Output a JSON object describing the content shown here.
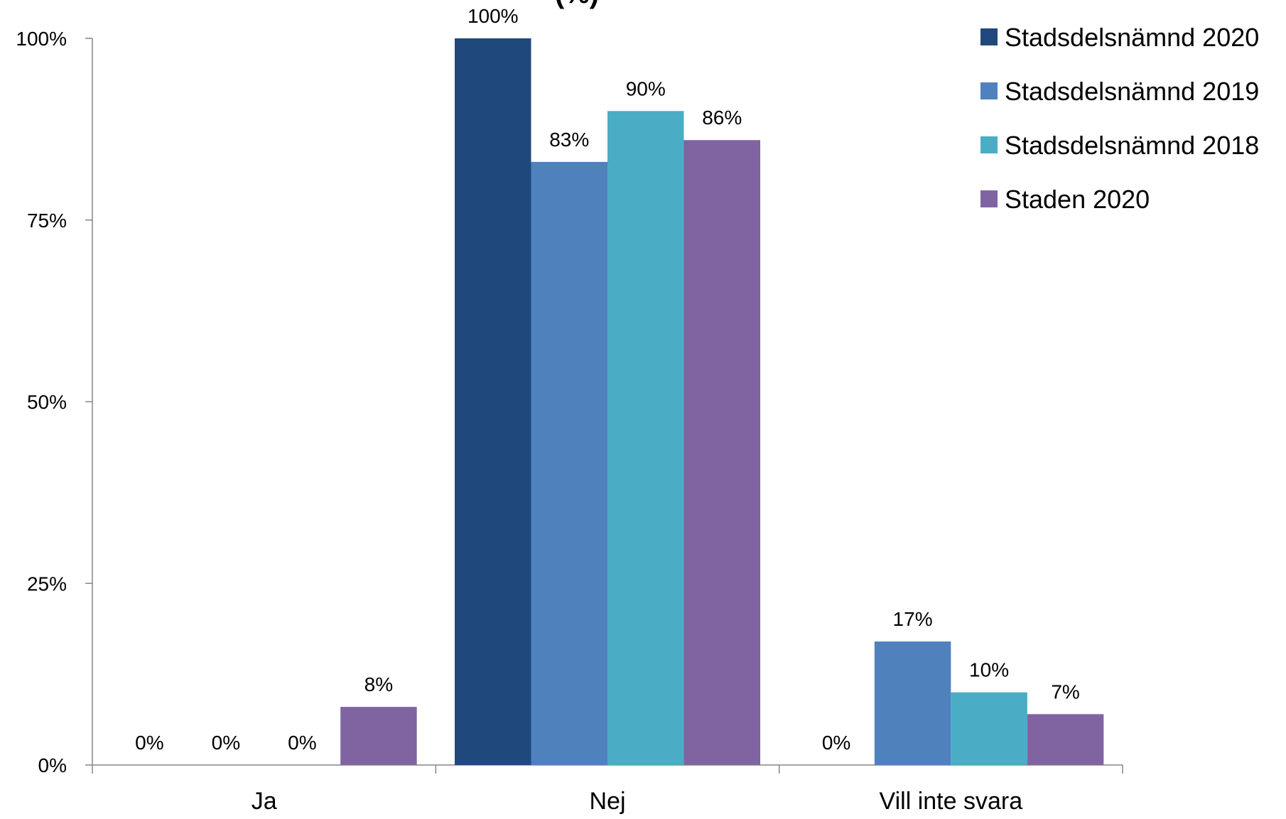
{
  "chart_data": {
    "type": "bar",
    "categories": [
      "Ja",
      "Nej",
      "Vill inte svara"
    ],
    "series": [
      {
        "name": "Stadsdelsnämnd 2020",
        "color": "#1F497D",
        "values": [
          0,
          100,
          0
        ]
      },
      {
        "name": "Stadsdelsnämnd 2019",
        "color": "#4F81BD",
        "values": [
          0,
          83,
          17
        ]
      },
      {
        "name": "Stadsdelsnämnd 2018",
        "color": "#4BACC6",
        "values": [
          0,
          90,
          10
        ]
      },
      {
        "name": "Staden 2020",
        "color": "#8064A2",
        "values": [
          8,
          86,
          7
        ]
      }
    ],
    "data_labels": [
      [
        "0%",
        "100%",
        "0%"
      ],
      [
        "0%",
        "83%",
        "17%"
      ],
      [
        "0%",
        "90%",
        "10%"
      ],
      [
        "8%",
        "86%",
        "7%"
      ]
    ],
    "y_ticks": [
      "0%",
      "25%",
      "50%",
      "75%",
      "100%"
    ],
    "y_tick_values": [
      0,
      25,
      50,
      75,
      100
    ],
    "ylim": [
      0,
      100
    ],
    "title_fragment": "(%)",
    "legend_position": "top-right",
    "grid": false
  }
}
